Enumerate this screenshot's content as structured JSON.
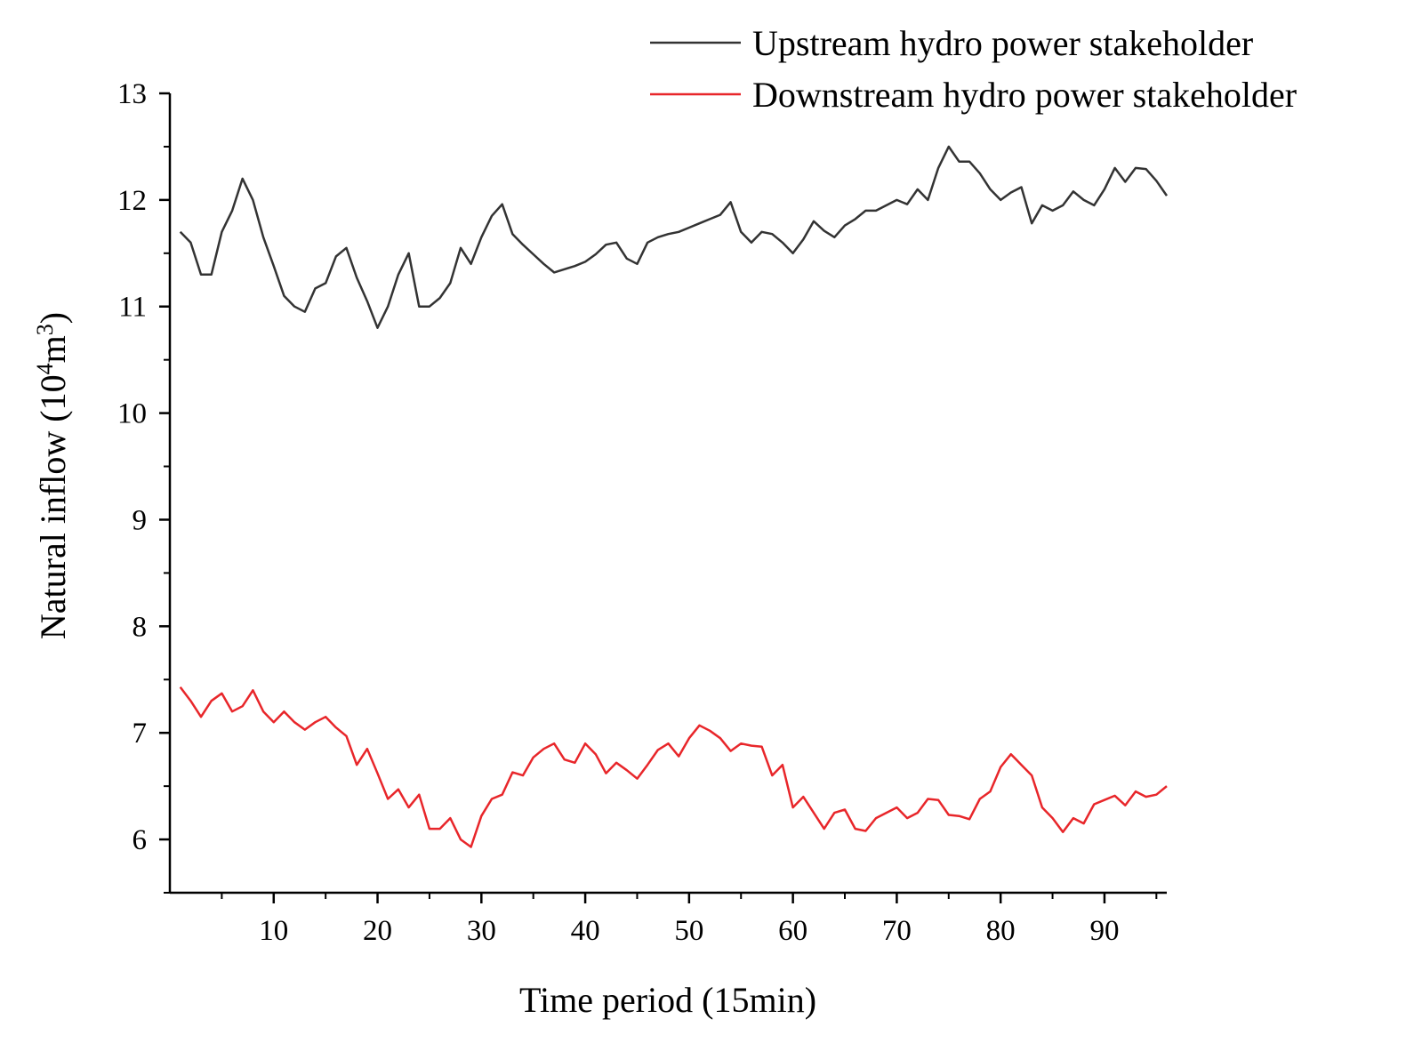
{
  "chart_data": {
    "type": "line",
    "title": "",
    "xlabel": "Time period (15min)",
    "ylabel_main": "Natural inflow (10",
    "ylabel_sup1": "4",
    "ylabel_mid": "m",
    "ylabel_sup2": "3",
    "ylabel_end": ")",
    "xlim": [
      0,
      96
    ],
    "ylim": [
      5.5,
      13
    ],
    "xticks": [
      10,
      20,
      30,
      40,
      50,
      60,
      70,
      80,
      90
    ],
    "xtick_labels": [
      "10",
      "20",
      "30",
      "40",
      "50",
      "60",
      "70",
      "80",
      "90"
    ],
    "yticks": [
      6,
      7,
      8,
      9,
      10,
      11,
      12,
      13
    ],
    "ytick_labels": [
      "6",
      "7",
      "8",
      "9",
      "10",
      "11",
      "12",
      "13"
    ],
    "legend_position": "top-right",
    "series": [
      {
        "name": "Upstream hydro power stakeholder",
        "color": "#333333",
        "values": [
          11.7,
          11.6,
          11.3,
          11.3,
          11.7,
          11.9,
          12.2,
          12.0,
          11.65,
          11.38,
          11.1,
          11.0,
          10.95,
          11.17,
          11.22,
          11.47,
          11.55,
          11.27,
          11.05,
          10.8,
          11.0,
          11.3,
          11.5,
          11.0,
          11.0,
          11.08,
          11.22,
          11.55,
          11.4,
          11.65,
          11.85,
          11.96,
          11.68,
          11.58,
          11.49,
          11.4,
          11.32,
          11.35,
          11.38,
          11.42,
          11.49,
          11.58,
          11.6,
          11.45,
          11.4,
          11.6,
          11.65,
          11.68,
          11.7,
          11.74,
          11.78,
          11.82,
          11.86,
          11.98,
          11.7,
          11.6,
          11.7,
          11.68,
          11.6,
          11.5,
          11.63,
          11.8,
          11.71,
          11.65,
          11.76,
          11.82,
          11.9,
          11.9,
          11.95,
          12.0,
          11.96,
          12.1,
          12.0,
          12.3,
          12.5,
          12.36,
          12.36,
          12.25,
          12.1,
          12.0,
          12.07,
          12.12,
          11.78,
          11.95,
          11.9,
          11.95,
          12.08,
          12.0,
          11.95,
          12.1,
          12.3,
          12.17,
          12.3,
          12.29,
          12.18,
          12.04
        ]
      },
      {
        "name": "Downstream hydro power stakeholder",
        "color": "#e8262a",
        "values": [
          7.43,
          7.3,
          7.15,
          7.3,
          7.37,
          7.2,
          7.25,
          7.4,
          7.2,
          7.1,
          7.2,
          7.1,
          7.03,
          7.1,
          7.15,
          7.05,
          6.97,
          6.7,
          6.85,
          6.62,
          6.38,
          6.47,
          6.3,
          6.42,
          6.1,
          6.1,
          6.2,
          6.0,
          5.93,
          6.22,
          6.38,
          6.42,
          6.63,
          6.6,
          6.77,
          6.85,
          6.9,
          6.75,
          6.72,
          6.9,
          6.8,
          6.62,
          6.72,
          6.65,
          6.57,
          6.7,
          6.84,
          6.9,
          6.78,
          6.95,
          7.07,
          7.02,
          6.95,
          6.83,
          6.9,
          6.88,
          6.87,
          6.6,
          6.7,
          6.3,
          6.4,
          6.25,
          6.1,
          6.25,
          6.28,
          6.1,
          6.08,
          6.2,
          6.25,
          6.3,
          6.2,
          6.25,
          6.38,
          6.37,
          6.23,
          6.22,
          6.19,
          6.38,
          6.45,
          6.68,
          6.8,
          6.7,
          6.6,
          6.3,
          6.2,
          6.07,
          6.2,
          6.15,
          6.33,
          6.37,
          6.41,
          6.32,
          6.45,
          6.4,
          6.42,
          6.5
        ]
      }
    ]
  }
}
